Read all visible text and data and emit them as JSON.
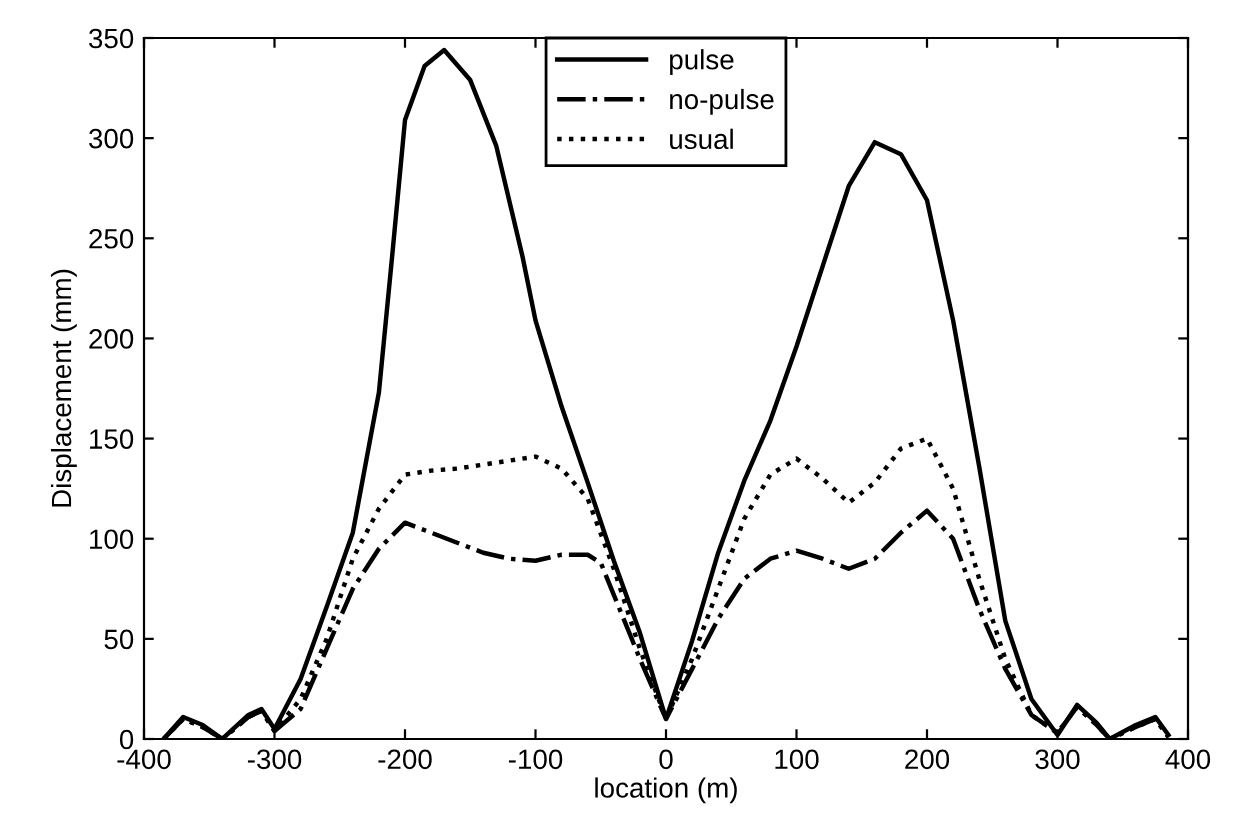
{
  "chart_data": {
    "type": "line",
    "xlabel": "location (m)",
    "ylabel": "Displacement (mm)",
    "xlim": [
      -400,
      400
    ],
    "xticks": [
      -400,
      -300,
      -200,
      -100,
      0,
      100,
      200,
      300,
      400
    ],
    "ylim": [
      0,
      350
    ],
    "yticks": [
      0,
      50,
      100,
      150,
      200,
      250,
      300,
      350
    ],
    "grid": false,
    "legend": "top center",
    "marker": "none",
    "series": [
      {
        "name": "pulse",
        "color": "#000000",
        "line_style": "solid",
        "x": [
          -385,
          -370,
          -355,
          -340,
          -320,
          -310,
          -300,
          -280,
          -260,
          -240,
          -220,
          -210,
          -200,
          -185,
          -170,
          -150,
          -130,
          -110,
          -100,
          -80,
          -60,
          -40,
          -20,
          0,
          20,
          40,
          60,
          80,
          100,
          120,
          140,
          160,
          180,
          200,
          220,
          240,
          260,
          280,
          300,
          315,
          330,
          340,
          360,
          375,
          385
        ],
        "values": [
          0,
          11,
          7,
          0,
          12,
          15,
          5,
          30,
          66,
          103,
          173,
          240,
          309,
          336,
          344,
          329,
          296,
          241,
          209,
          166,
          128,
          89,
          53,
          10,
          49,
          93,
          129,
          159,
          196,
          236,
          276,
          298,
          292,
          269,
          209,
          136,
          59,
          20,
          2,
          17,
          8,
          0,
          7,
          11,
          2
        ]
      },
      {
        "name": "no-pulse",
        "color": "#000000",
        "line_style": "dashdot",
        "x": [
          -385,
          -370,
          -355,
          -340,
          -320,
          -310,
          -300,
          -280,
          -260,
          -240,
          -220,
          -200,
          -180,
          -160,
          -140,
          -120,
          -100,
          -80,
          -60,
          -50,
          -40,
          -20,
          0,
          20,
          40,
          60,
          80,
          100,
          120,
          140,
          160,
          180,
          200,
          220,
          240,
          260,
          280,
          300,
          315,
          330,
          340,
          360,
          375,
          385
        ],
        "values": [
          0,
          10,
          6,
          0,
          11,
          14,
          4,
          15,
          45,
          75,
          95,
          108,
          103,
          98,
          93,
          90,
          89,
          92,
          92,
          88,
          72,
          40,
          10,
          35,
          60,
          80,
          90,
          94,
          90,
          85,
          90,
          103,
          114,
          100,
          65,
          35,
          12,
          3,
          16,
          7,
          0,
          6,
          10,
          1
        ]
      },
      {
        "name": "usual",
        "color": "#000000",
        "line_style": "dotted",
        "x": [
          -385,
          -370,
          -355,
          -340,
          -320,
          -310,
          -300,
          -280,
          -260,
          -240,
          -220,
          -200,
          -180,
          -160,
          -140,
          -120,
          -100,
          -80,
          -60,
          -40,
          -20,
          0,
          20,
          40,
          60,
          80,
          100,
          120,
          140,
          160,
          180,
          200,
          220,
          240,
          260,
          280,
          300,
          315,
          330,
          340,
          360,
          375,
          385
        ],
        "values": [
          0,
          10,
          6,
          0,
          11,
          14,
          4,
          20,
          50,
          90,
          115,
          132,
          134,
          135,
          137,
          139,
          141,
          135,
          120,
          85,
          45,
          10,
          40,
          75,
          110,
          132,
          140,
          130,
          118,
          128,
          145,
          150,
          125,
          80,
          40,
          12,
          3,
          16,
          7,
          0,
          6,
          10,
          1
        ]
      }
    ]
  }
}
